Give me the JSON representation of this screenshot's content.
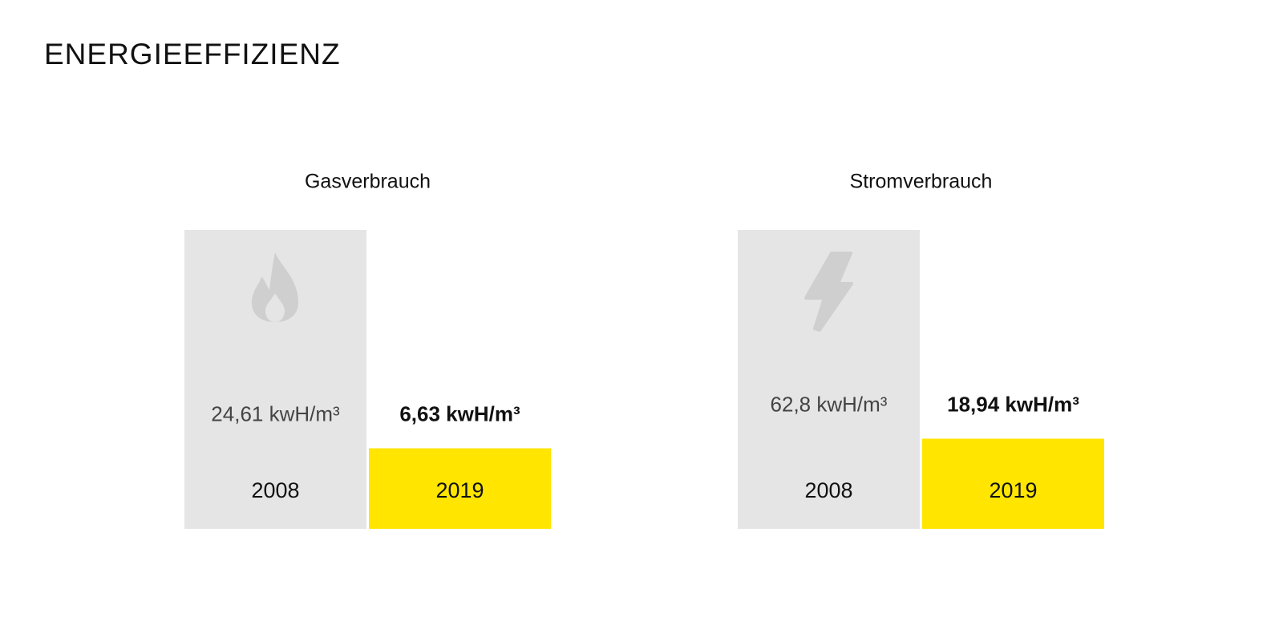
{
  "title": "ENERGIEEFFIZIENZ",
  "chart_data": [
    {
      "type": "bar",
      "title": "Gasverbrauch",
      "categories": [
        "2008",
        "2019"
      ],
      "values": [
        24.61,
        6.63
      ],
      "value_labels": [
        "24,61 kwH/m³",
        "6,63 kwH/m³"
      ],
      "colors": [
        "#e5e5e5",
        "#ffe500"
      ]
    },
    {
      "type": "bar",
      "title": "Stromverbrauch",
      "categories": [
        "2008",
        "2019"
      ],
      "values": [
        62.8,
        18.94
      ],
      "value_labels": [
        "62,8 kwH/m³",
        "18,94 kwH/m³"
      ],
      "colors": [
        "#e5e5e5",
        "#ffe500"
      ]
    }
  ]
}
